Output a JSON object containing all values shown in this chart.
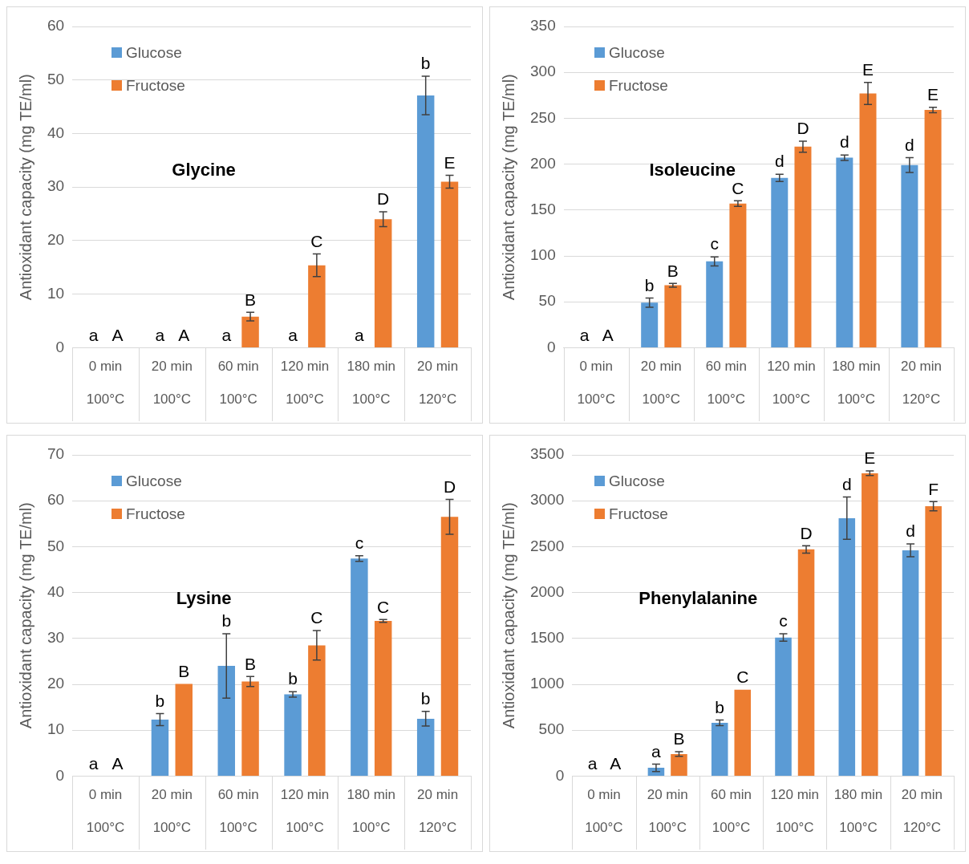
{
  "chart_data": [
    {
      "type": "bar",
      "title": "Glycine",
      "ylabel": "Antioxidant capacity (mg TE/ml)",
      "categories": [
        "0 min\n100°C",
        "20 min\n100°C",
        "60 min\n100°C",
        "120 min\n100°C",
        "180 min\n100°C",
        "20 min\n120°C"
      ],
      "series": [
        {
          "name": "Glucose",
          "color": "#5b9bd5",
          "values": [
            0,
            0,
            0,
            0,
            0,
            47.1
          ],
          "errors": [
            null,
            null,
            null,
            null,
            null,
            3.6
          ]
        },
        {
          "name": "Fructose",
          "color": "#ed7d31",
          "values": [
            0,
            0,
            5.8,
            15.4,
            24,
            31
          ],
          "errors": [
            null,
            null,
            0.8,
            2.1,
            1.4,
            1.2
          ]
        }
      ],
      "ylim": [
        0,
        60
      ],
      "yticks": [
        0,
        10,
        20,
        30,
        40,
        50,
        60
      ],
      "grid": "y",
      "legend": "top left",
      "annotations": [
        {
          "text": "a",
          "x": "0 min\n100°C",
          "y": 0
        },
        {
          "text": "A",
          "x": "0 min\n100°C",
          "y": 0
        },
        {
          "text": "a",
          "x": "20 min\n100°C",
          "y": 0
        },
        {
          "text": "A",
          "x": "20 min\n100°C",
          "y": 0
        },
        {
          "text": "a",
          "x": "60 min\n100°C",
          "y": 0
        },
        {
          "text": "B",
          "x": "60 min\n100°C",
          "y": 5.8
        },
        {
          "text": "a",
          "x": "120 min\n100°C",
          "y": 0
        },
        {
          "text": "C",
          "x": "120 min\n100°C",
          "y": 15.4
        },
        {
          "text": "a",
          "x": "180 min\n100°C",
          "y": 0
        },
        {
          "text": "D",
          "x": "180 min\n100°C",
          "y": 24
        },
        {
          "text": "b",
          "x": "20 min\n120°C",
          "y": 47.1
        },
        {
          "text": "E",
          "x": "20 min\n120°C",
          "y": 31
        }
      ]
    },
    {
      "type": "bar",
      "title": "Isoleucine",
      "ylabel": "Antioxidant capacity (mg TE/ml)",
      "categories": [
        "0 min\n100°C",
        "20 min\n100°C",
        "60 min\n100°C",
        "120 min\n100°C",
        "180 min\n100°C",
        "20 min\n120°C"
      ],
      "series": [
        {
          "name": "Glucose",
          "color": "#5b9bd5",
          "values": [
            0,
            49,
            94,
            185,
            207,
            199
          ],
          "errors": [
            null,
            5,
            5,
            4,
            3,
            8
          ]
        },
        {
          "name": "Fructose",
          "color": "#ed7d31",
          "values": [
            0,
            68,
            157,
            219,
            277,
            259
          ],
          "errors": [
            null,
            2,
            3,
            6,
            12,
            3
          ]
        }
      ],
      "ylim": [
        0,
        350
      ],
      "yticks": [
        0,
        50,
        100,
        150,
        200,
        250,
        300,
        350
      ],
      "grid": "y",
      "legend": "top left",
      "annotations": [
        {
          "text": "a",
          "x": "0 min\n100°C",
          "y": 0
        },
        {
          "text": "A",
          "x": "0 min\n100°C",
          "y": 0
        },
        {
          "text": "b",
          "x": "20 min\n100°C",
          "y": 49
        },
        {
          "text": "B",
          "x": "20 min\n100°C",
          "y": 68
        },
        {
          "text": "c",
          "x": "60 min\n100°C",
          "y": 94
        },
        {
          "text": "C",
          "x": "60 min\n100°C",
          "y": 157
        },
        {
          "text": "d",
          "x": "120 min\n100°C",
          "y": 185
        },
        {
          "text": "D",
          "x": "120 min\n100°C",
          "y": 219
        },
        {
          "text": "d",
          "x": "180 min\n100°C",
          "y": 207
        },
        {
          "text": "E",
          "x": "180 min\n100°C",
          "y": 277
        },
        {
          "text": "d",
          "x": "20 min\n120°C",
          "y": 199
        },
        {
          "text": "E",
          "x": "20 min\n120°C",
          "y": 259
        }
      ]
    },
    {
      "type": "bar",
      "title": "Lysine",
      "ylabel": "Antioxidant capacity (mg TE/ml)",
      "categories": [
        "0 min\n100°C",
        "20 min\n100°C",
        "60 min\n100°C",
        "120 min\n100°C",
        "180 min\n100°C",
        "20 min\n120°C"
      ],
      "series": [
        {
          "name": "Glucose",
          "color": "#5b9bd5",
          "values": [
            0,
            12.3,
            24,
            17.8,
            47.4,
            12.5
          ],
          "errors": [
            null,
            1.3,
            7,
            0.6,
            0.6,
            1.6
          ]
        },
        {
          "name": "Fructose",
          "color": "#ed7d31",
          "values": [
            0,
            20.1,
            20.6,
            28.5,
            33.8,
            56.5
          ],
          "errors": [
            null,
            null,
            1.1,
            3.2,
            0.3,
            3.8
          ]
        }
      ],
      "ylim": [
        0,
        70
      ],
      "yticks": [
        0,
        10,
        20,
        30,
        40,
        50,
        60,
        70
      ],
      "grid": "y",
      "legend": "top left",
      "annotations": [
        {
          "text": "a",
          "x": "0 min\n100°C",
          "y": 0
        },
        {
          "text": "A",
          "x": "0 min\n100°C",
          "y": 0
        },
        {
          "text": "b",
          "x": "20 min\n100°C",
          "y": 12.3
        },
        {
          "text": "B",
          "x": "20 min\n100°C",
          "y": 20.1
        },
        {
          "text": "b",
          "x": "60 min\n100°C",
          "y": 24
        },
        {
          "text": "B",
          "x": "60 min\n100°C",
          "y": 20.6
        },
        {
          "text": "b",
          "x": "120 min\n100°C",
          "y": 17.8
        },
        {
          "text": "C",
          "x": "120 min\n100°C",
          "y": 28.5
        },
        {
          "text": "c",
          "x": "180 min\n100°C",
          "y": 47.4
        },
        {
          "text": "C",
          "x": "180 min\n100°C",
          "y": 33.8
        },
        {
          "text": "b",
          "x": "20 min\n120°C",
          "y": 12.5
        },
        {
          "text": "D",
          "x": "20 min\n120°C",
          "y": 56.5
        }
      ]
    },
    {
      "type": "bar",
      "title": "Phenylalanine",
      "ylabel": "Antioxidant capacity (mg TE/ml)",
      "categories": [
        "0 min\n100°C",
        "20 min\n100°C",
        "60 min\n100°C",
        "120 min\n100°C",
        "180 min\n100°C",
        "20 min\n120°C"
      ],
      "series": [
        {
          "name": "Glucose",
          "color": "#5b9bd5",
          "values": [
            0,
            90,
            580,
            1510,
            2810,
            2460
          ],
          "errors": [
            null,
            40,
            30,
            40,
            230,
            70
          ]
        },
        {
          "name": "Fructose",
          "color": "#ed7d31",
          "values": [
            0,
            240,
            940,
            2470,
            3300,
            2940
          ],
          "errors": [
            null,
            25,
            null,
            40,
            25,
            50
          ]
        }
      ],
      "ylim": [
        0,
        3500
      ],
      "yticks": [
        0,
        500,
        1000,
        1500,
        2000,
        2500,
        3000,
        3500
      ],
      "grid": "y",
      "legend": "top left",
      "annotations": [
        {
          "text": "a",
          "x": "0 min\n100°C",
          "y": 0
        },
        {
          "text": "A",
          "x": "0 min\n100°C",
          "y": 0
        },
        {
          "text": "a",
          "x": "20 min\n100°C",
          "y": 90
        },
        {
          "text": "B",
          "x": "20 min\n100°C",
          "y": 240
        },
        {
          "text": "b",
          "x": "60 min\n100°C",
          "y": 580
        },
        {
          "text": "C",
          "x": "60 min\n100°C",
          "y": 940
        },
        {
          "text": "c",
          "x": "120 min\n100°C",
          "y": 1510
        },
        {
          "text": "D",
          "x": "120 min\n100°C",
          "y": 2470
        },
        {
          "text": "d",
          "x": "180 min\n100°C",
          "y": 2810
        },
        {
          "text": "E",
          "x": "180 min\n100°C",
          "y": 3300
        },
        {
          "text": "d",
          "x": "20 min\n120°C",
          "y": 2460
        },
        {
          "text": "F",
          "x": "20 min\n120°C",
          "y": 2940
        }
      ]
    }
  ]
}
